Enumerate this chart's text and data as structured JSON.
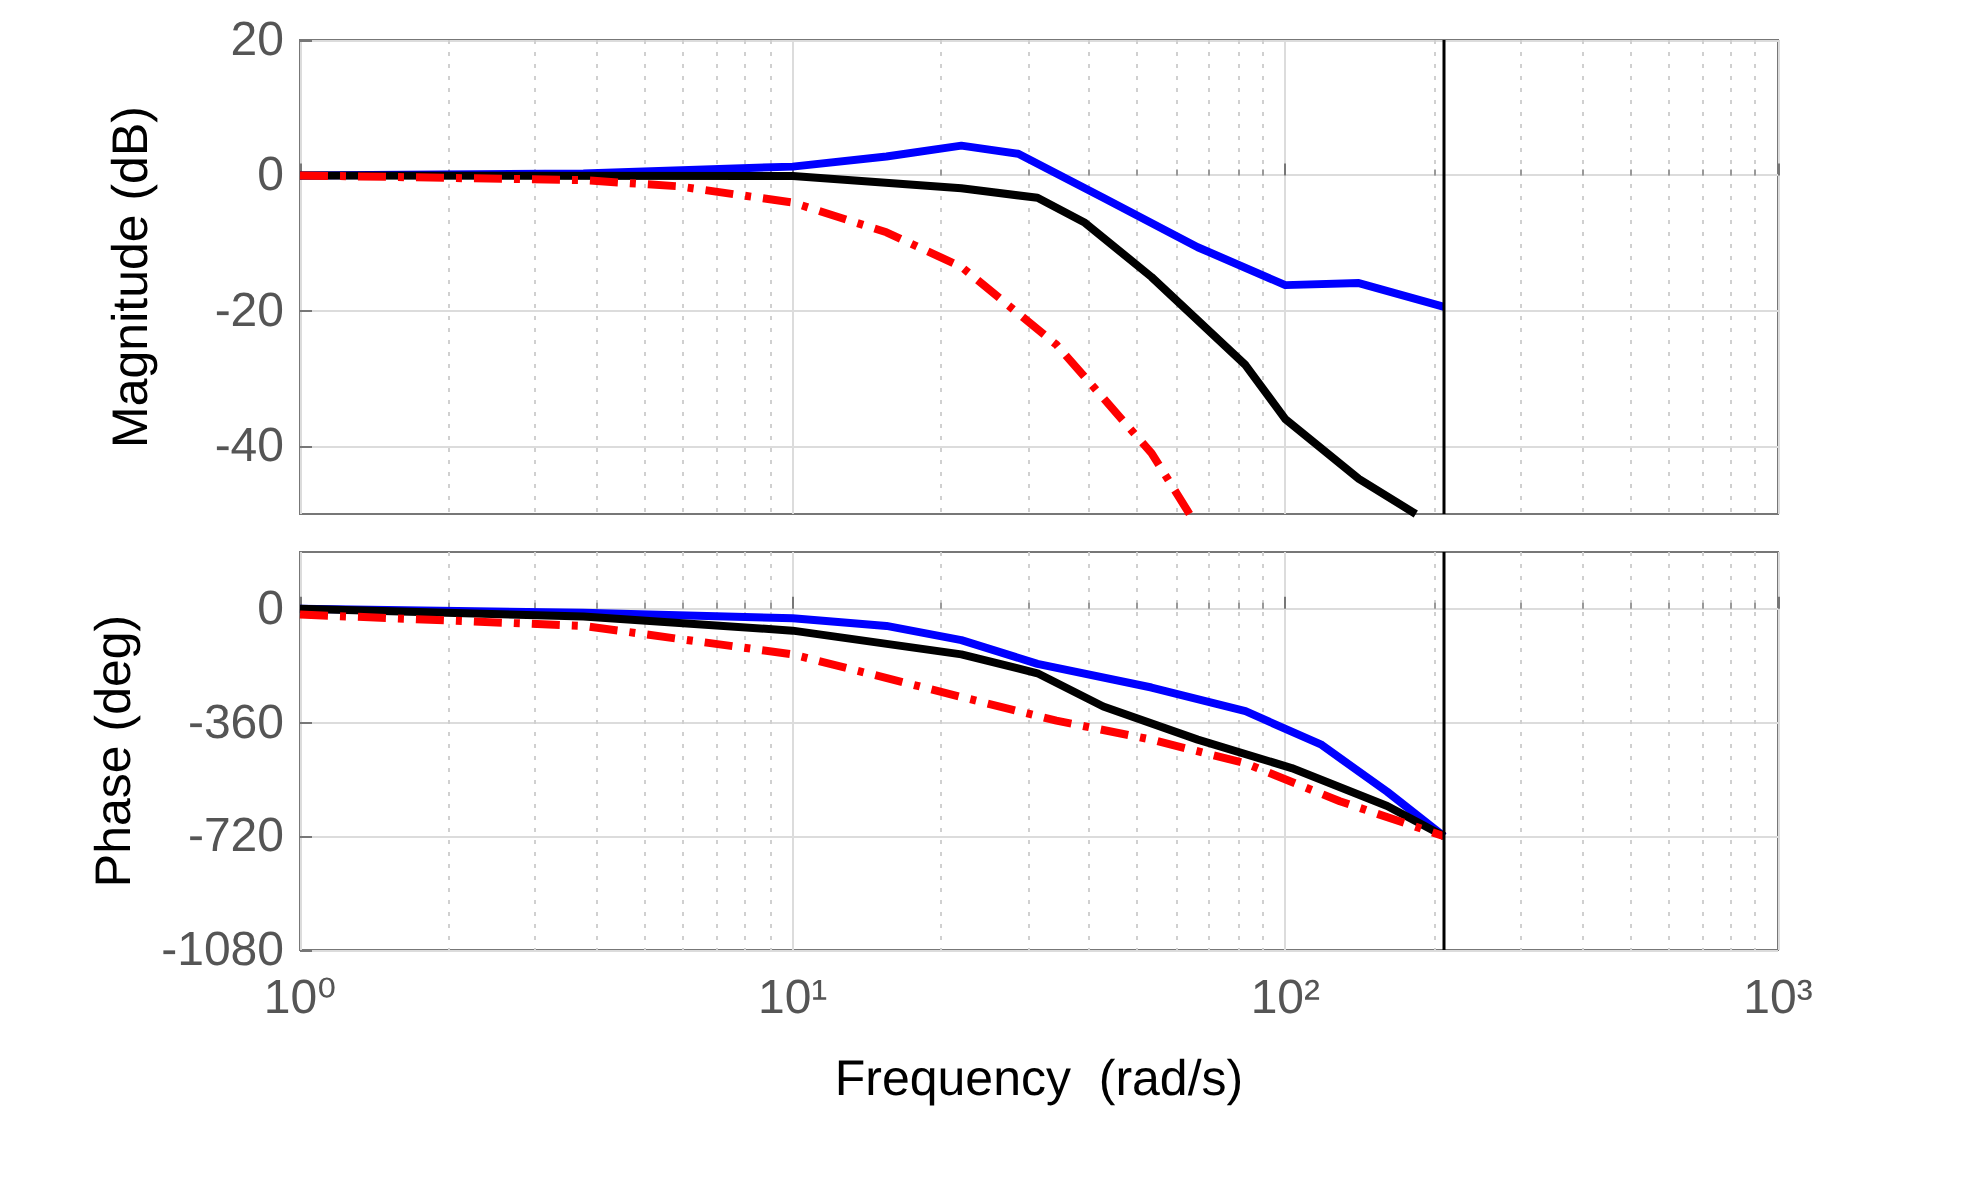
{
  "chart_data": [
    {
      "type": "line",
      "ylabel": "Magnitude (dB)",
      "xlim": [
        1,
        1000
      ],
      "xticks": [
        1,
        10,
        100,
        1000
      ],
      "ylim": [
        -50,
        20
      ],
      "yticks": [
        -40,
        -20,
        0,
        20
      ],
      "log": "x",
      "grid": true,
      "tick_labels": "y",
      "series": [
        {
          "color": "#0000ff",
          "line_style": "solid",
          "x": [
            1,
            3.76,
            10,
            15.5,
            22,
            28.7,
            42.7,
            66.4,
            100,
            141,
            210
          ],
          "values": [
            0,
            0.3,
            1.3,
            2.8,
            4.4,
            3.2,
            -3.3,
            -10.6,
            -16.2,
            -15.9,
            -19.4
          ]
        },
        {
          "color": "#000000",
          "line_style": "solid",
          "x": [
            1,
            10,
            22,
            31.4,
            39.2,
            53.5,
            83,
            100,
            141,
            184
          ],
          "values": [
            0,
            -0.1,
            -1.9,
            -3.3,
            -7,
            -15,
            -28,
            -36,
            -44.8,
            -50
          ]
        },
        {
          "color": "#ff0000",
          "line_style": "dashed",
          "x": [
            1,
            3.76,
            5.85,
            10,
            15.5,
            22,
            34.3,
            53.5,
            63.9
          ],
          "values": [
            0,
            -0.7,
            -1.6,
            -4,
            -8.4,
            -13.5,
            -25,
            -41,
            -50
          ]
        }
      ],
      "ref_lines": [
        {
          "axis": "x",
          "value": 210,
          "color": "#000000"
        }
      ]
    },
    {
      "type": "line",
      "xlabel": "Frequency  (rad/s)",
      "ylabel": "Phase (deg)",
      "xlim": [
        1,
        1000
      ],
      "xticks": [
        {
          "value": 1,
          "label": "10⁰"
        },
        {
          "value": 10,
          "label": "10¹"
        },
        {
          "value": 100,
          "label": "10²"
        },
        {
          "value": 1000,
          "label": "10³"
        }
      ],
      "ylim": [
        -1080,
        180
      ],
      "yticks": [
        -1080,
        -720,
        -360,
        0
      ],
      "log": "x",
      "grid": true,
      "series": [
        {
          "color": "#0000ff",
          "line_style": "solid",
          "x": [
            1,
            3.76,
            10,
            15.5,
            22,
            31.4,
            53.5,
            83,
            118,
            161,
            210
          ],
          "values": [
            0,
            -12,
            -30,
            -54,
            -99,
            -174,
            -249,
            -324,
            -429,
            -579,
            -720
          ]
        },
        {
          "color": "#000000",
          "line_style": "solid",
          "x": [
            1,
            3.76,
            10,
            22,
            31.4,
            42.7,
            66.4,
            103,
            161,
            210
          ],
          "values": [
            0,
            -24,
            -69,
            -144,
            -204,
            -309,
            -414,
            -504,
            -624,
            -720
          ]
        },
        {
          "color": "#ff0000",
          "line_style": "dashed",
          "x": [
            1,
            3.76,
            10,
            22,
            34.3,
            53.5,
            83,
            129,
            210
          ],
          "values": [
            -18,
            -54,
            -144,
            -279,
            -354,
            -414,
            -489,
            -609,
            -720
          ]
        }
      ],
      "ref_lines": [
        {
          "axis": "x",
          "value": 210,
          "color": "#000000"
        }
      ]
    }
  ]
}
